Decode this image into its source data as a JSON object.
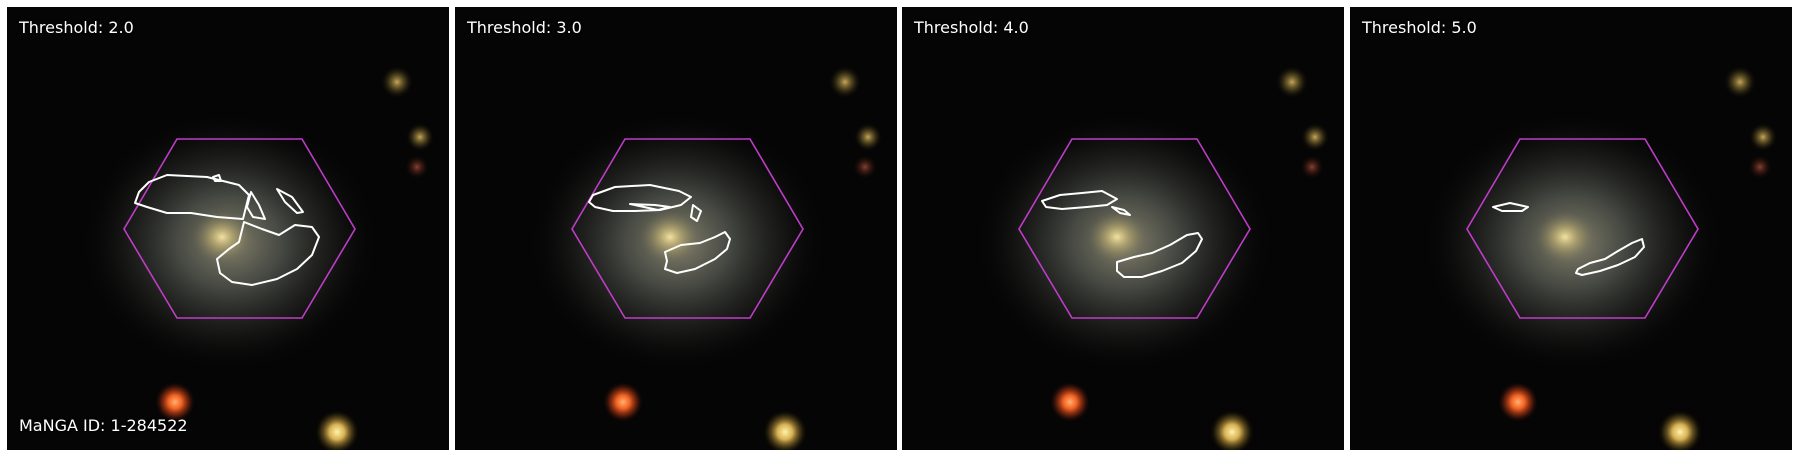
{
  "panels": [
    {
      "threshold_label": "Threshold: 2.0"
    },
    {
      "threshold_label": "Threshold: 3.0"
    },
    {
      "threshold_label": "Threshold: 4.0"
    },
    {
      "threshold_label": "Threshold: 5.0"
    }
  ],
  "manga_id_label": "MaNGA ID: 1-284522",
  "colors": {
    "background": "#050505",
    "hexagon": "#c03cc8",
    "contour": "#ffffff",
    "label_text": "#ffffff",
    "separator": "#ffffff"
  }
}
